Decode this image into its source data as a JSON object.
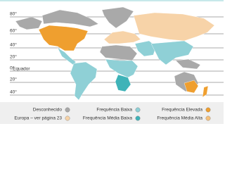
{
  "map": {
    "latitudes": [
      "80°",
      "60°",
      "40°",
      "20°",
      "0°",
      "20°",
      "40°"
    ],
    "equator": "Equador",
    "legend": [
      {
        "label": "Desconhecido",
        "color": "#a9a9a9"
      },
      {
        "label": "Frequência Baixa",
        "color": "#8fd0d6"
      },
      {
        "label": "Frequência Elevada",
        "color": "#ef9f2f"
      },
      {
        "label": "Europa – ver página 23",
        "color": "#f7d3a8"
      },
      {
        "label": "Frequência Média Baixa",
        "color": "#3fb3b8"
      },
      {
        "label": "Frequência Média Alta",
        "color": "#f6c07a"
      }
    ]
  }
}
